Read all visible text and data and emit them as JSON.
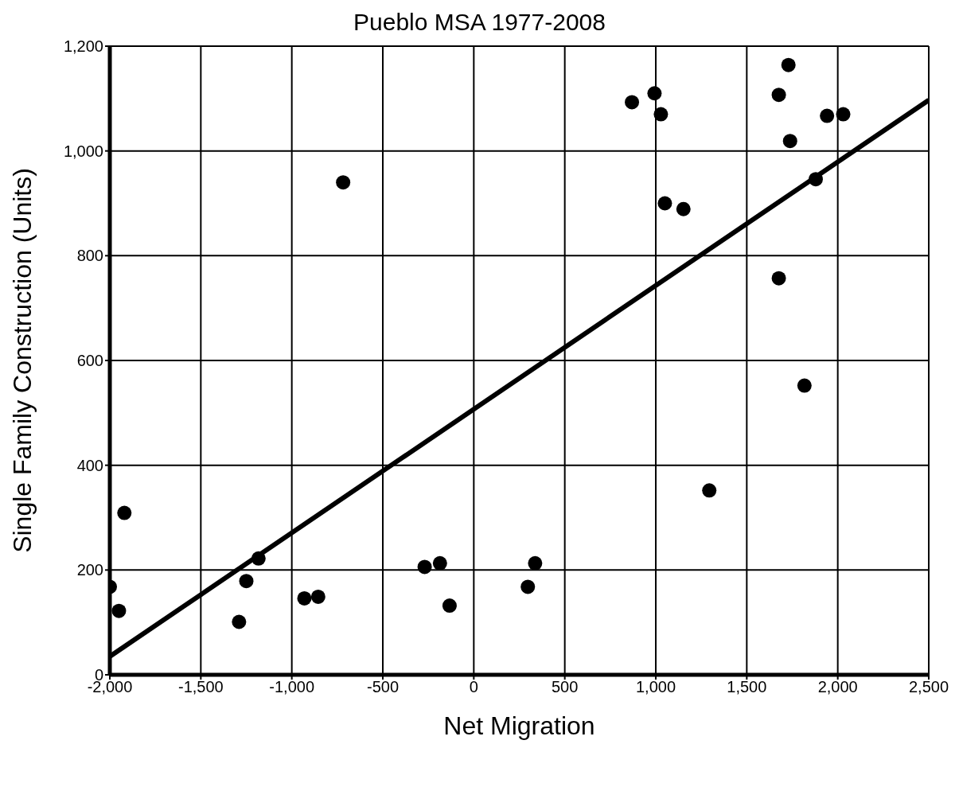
{
  "chart_data": {
    "type": "scatter",
    "title": "Pueblo MSA 1977-2008",
    "xlabel": "Net Migration",
    "ylabel": "Single Family Construction (Units)",
    "xlim": [
      -2000,
      2500
    ],
    "xticks": [
      {
        "value": -2000,
        "label": "-2,000"
      },
      {
        "value": -1500,
        "label": "-1,500"
      },
      {
        "value": -1000,
        "label": "-1,000"
      },
      {
        "value": -500,
        "label": "-500"
      },
      0,
      500,
      {
        "value": 1000,
        "label": "1,000"
      },
      {
        "value": 1500,
        "label": "1,500"
      },
      {
        "value": 2000,
        "label": "2,000"
      },
      {
        "value": 2500,
        "label": "2,500"
      }
    ],
    "ylim": [
      0,
      1200
    ],
    "yticks": [
      0,
      200,
      400,
      600,
      800,
      {
        "value": 1000,
        "label": "1,000"
      },
      {
        "value": 1200,
        "label": "1,200"
      }
    ],
    "grid": true,
    "marker": "circle",
    "series": [
      {
        "color": "#000000",
        "x": [
          -2000,
          -1950,
          -1920,
          -1290,
          -1250,
          -1183,
          -931,
          -855,
          -718,
          -270,
          -186,
          -133,
          297,
          337,
          869,
          993,
          1028,
          1050,
          1152,
          1294,
          1676,
          1729,
          1738,
          1676,
          1817,
          1879,
          1941,
          2030
        ],
        "values": [
          168,
          122,
          309,
          101,
          179,
          222,
          146,
          149,
          940,
          206,
          213,
          132,
          168,
          213,
          1093,
          1110,
          1070,
          900,
          889,
          352,
          1107,
          1164,
          1019,
          757,
          552,
          946,
          1067,
          1070
        ]
      },
      {
        "type": "line",
        "color": "#000000",
        "x": [
          -2000,
          2500
        ],
        "values": [
          35,
          1097
        ],
        "marker": "none"
      }
    ]
  }
}
